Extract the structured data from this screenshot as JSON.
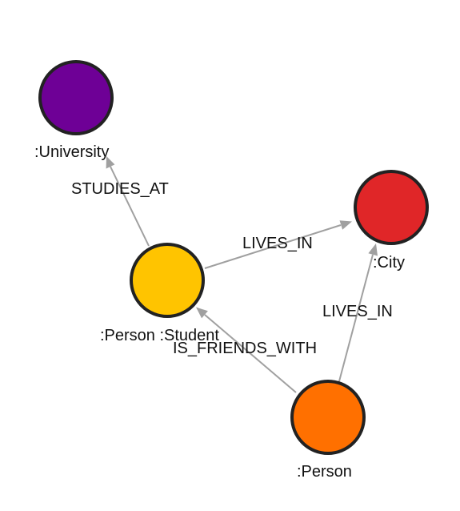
{
  "nodes": [
    {
      "id": "university",
      "label": ":University",
      "color": "#6e0096"
    },
    {
      "id": "city",
      "label": ":City",
      "color": "#e02628"
    },
    {
      "id": "person_student",
      "label": ":Person :Student",
      "color": "#ffc400"
    },
    {
      "id": "person",
      "label": ":Person",
      "color": "#ff7000"
    }
  ],
  "edges": [
    {
      "from": "person_student",
      "to": "university",
      "label": "STUDIES_AT"
    },
    {
      "from": "person_student",
      "to": "city",
      "label": "LIVES_IN"
    },
    {
      "from": "person",
      "to": "city",
      "label": "LIVES_IN"
    },
    {
      "from": "person",
      "to": "person_student",
      "label": "IS_FRIENDS_WITH"
    }
  ],
  "colors": {
    "edge": "#a0a0a0",
    "node_border": "#222222"
  }
}
